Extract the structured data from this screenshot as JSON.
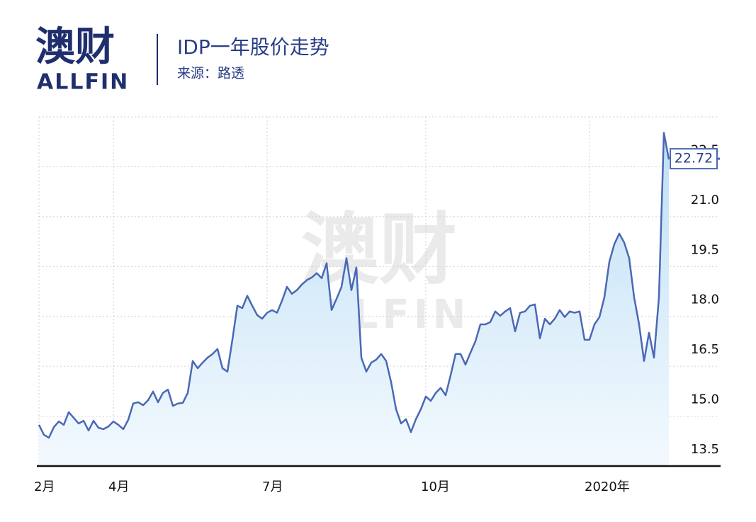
{
  "logo": {
    "name": "澳财",
    "en": "ALLFIN"
  },
  "chart_data": {
    "type": "line",
    "title": "IDP一年股价走势",
    "subtitle": "来源：路透",
    "categories": [
      "2月",
      null,
      null,
      null,
      null,
      null,
      null,
      null,
      null,
      null,
      null,
      null,
      null,
      null,
      null,
      "4月",
      null,
      null,
      null,
      null,
      null,
      null,
      null,
      null,
      null,
      null,
      null,
      null,
      null,
      null,
      null,
      null,
      null,
      null,
      null,
      null,
      null,
      null,
      null,
      null,
      null,
      null,
      null,
      null,
      null,
      null,
      "7月",
      null,
      null,
      null,
      null,
      null,
      null,
      null,
      null,
      null,
      null,
      null,
      null,
      null,
      null,
      null,
      null,
      null,
      null,
      null,
      null,
      null,
      null,
      null,
      null,
      null,
      null,
      null,
      null,
      null,
      null,
      null,
      "10月",
      null,
      null,
      null,
      null,
      null,
      null,
      null,
      null,
      null,
      null,
      null,
      null,
      null,
      null,
      null,
      null,
      null,
      null,
      null,
      null,
      null,
      null,
      null,
      null,
      null,
      null,
      null,
      null,
      null,
      null,
      null,
      null,
      "2020年",
      null,
      null,
      null,
      null,
      null,
      null,
      null,
      null,
      null,
      null,
      null,
      null,
      null,
      null,
      null,
      null
    ],
    "series": [
      {
        "name": "IDP",
        "color": "#4a68b5",
        "values": [
          14.74,
          14.44,
          14.35,
          14.67,
          14.84,
          14.74,
          15.12,
          14.95,
          14.78,
          14.86,
          14.57,
          14.86,
          14.65,
          14.61,
          14.69,
          14.84,
          14.74,
          14.61,
          14.89,
          15.38,
          15.42,
          15.33,
          15.48,
          15.74,
          15.42,
          15.7,
          15.8,
          15.31,
          15.38,
          15.4,
          15.7,
          16.66,
          16.44,
          16.61,
          16.76,
          16.87,
          17.02,
          16.44,
          16.34,
          17.3,
          18.32,
          18.25,
          18.62,
          18.32,
          18.04,
          17.93,
          18.11,
          18.19,
          18.11,
          18.47,
          18.89,
          18.68,
          18.79,
          18.96,
          19.09,
          19.17,
          19.3,
          19.15,
          19.6,
          18.19,
          18.53,
          18.89,
          19.75,
          18.79,
          19.47,
          16.76,
          16.34,
          16.61,
          16.7,
          16.87,
          16.66,
          16.02,
          15.21,
          14.78,
          14.91,
          14.52,
          14.91,
          15.21,
          15.59,
          15.46,
          15.7,
          15.85,
          15.63,
          16.23,
          16.87,
          16.87,
          16.55,
          16.91,
          17.25,
          17.76,
          17.76,
          17.83,
          18.15,
          18.02,
          18.15,
          18.25,
          17.55,
          18.11,
          18.15,
          18.32,
          18.36,
          17.34,
          17.93,
          17.76,
          17.93,
          18.19,
          17.98,
          18.15,
          18.11,
          18.15,
          17.3,
          17.3,
          17.76,
          17.98,
          18.57,
          19.64,
          20.17,
          20.49,
          20.22,
          19.75,
          18.57,
          17.76,
          16.66,
          17.51,
          16.76,
          18.57,
          23.52,
          22.72
        ]
      }
    ],
    "ylim": [
      13.5,
      24
    ],
    "yticks": [
      13.5,
      {
        "value": 15,
        "label": "15.0"
      },
      16.5,
      {
        "value": 18,
        "label": "18.0"
      },
      19.5,
      {
        "value": 21,
        "label": "21.0"
      },
      22.5
    ],
    "grid": true
  }
}
